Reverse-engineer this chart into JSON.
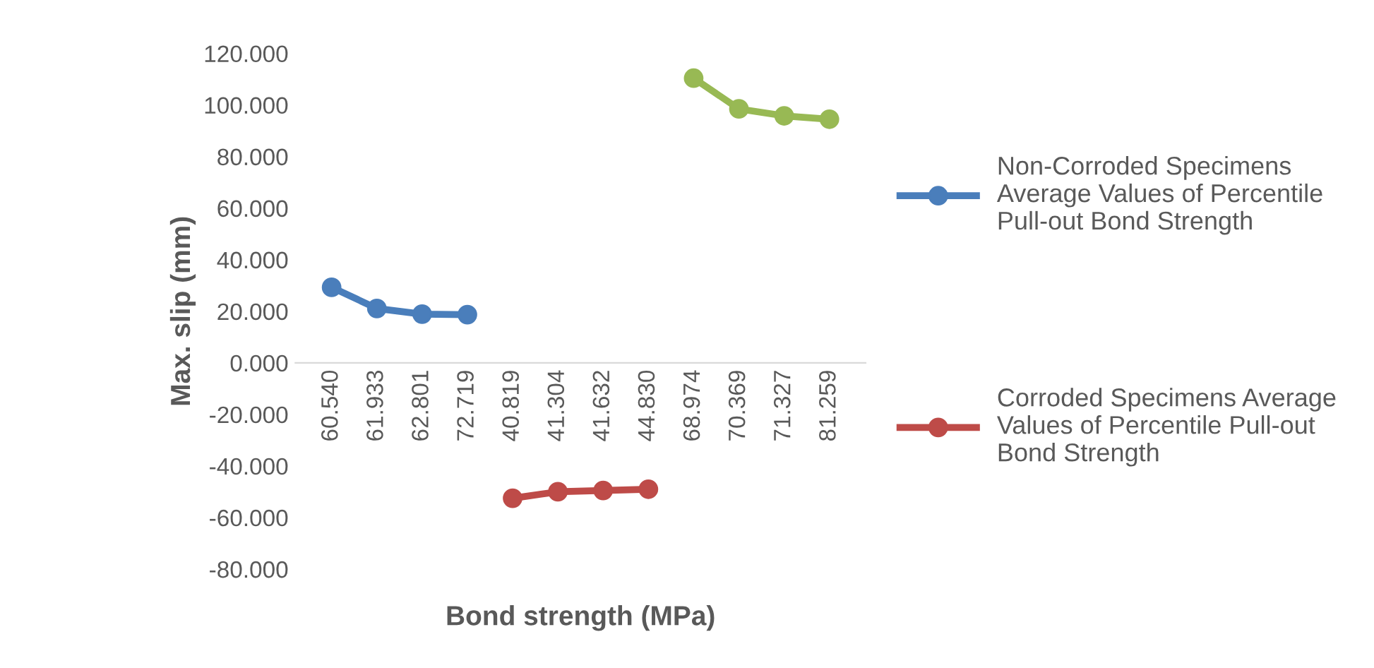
{
  "chart_data": {
    "type": "line",
    "xlabel": "Bond strength (MPa)",
    "ylabel": "Max. slip (mm)",
    "categories": [
      "60.540",
      "61.933",
      "62.801",
      "72.719",
      "40.819",
      "41.304",
      "41.632",
      "44.830",
      "68.974",
      "70.369",
      "71.327",
      "81.259"
    ],
    "series": [
      {
        "name": "Non-Corroded Specimens Average Values of Percentile Pull-out Bond Strength",
        "color": "#4a7ebb",
        "values": [
          29.3,
          21.1,
          18.9,
          18.7,
          null,
          null,
          null,
          null,
          null,
          null,
          null,
          null
        ]
      },
      {
        "name": "Corroded Specimens Average Values of Percentile Pull-out Bond Strength",
        "color": "#be4b48",
        "values": [
          null,
          null,
          null,
          null,
          -52.5,
          -50.0,
          -49.5,
          -49.0,
          null,
          null,
          null,
          null
        ]
      },
      {
        "color": "#98b954",
        "values": [
          null,
          null,
          null,
          null,
          null,
          null,
          null,
          null,
          110.4,
          98.5,
          95.8,
          94.5
        ]
      }
    ],
    "ylim": [
      -80,
      120
    ],
    "yticks": [
      {
        "value": -80,
        "label": "-80.000"
      },
      {
        "value": -60,
        "label": "-60.000"
      },
      {
        "value": -40,
        "label": "-40.000"
      },
      {
        "value": -20,
        "label": "-20.000"
      },
      {
        "value": 0,
        "label": "0.000"
      },
      {
        "value": 20,
        "label": "20.000"
      },
      {
        "value": 40,
        "label": "40.000"
      },
      {
        "value": 60,
        "label": "60.000"
      },
      {
        "value": 80,
        "label": "80.000"
      },
      {
        "value": 100,
        "label": "100.000"
      },
      {
        "value": 120,
        "label": "120.000"
      }
    ],
    "marker": "circle",
    "line_style": "solid",
    "legend": "right",
    "grid": false
  }
}
